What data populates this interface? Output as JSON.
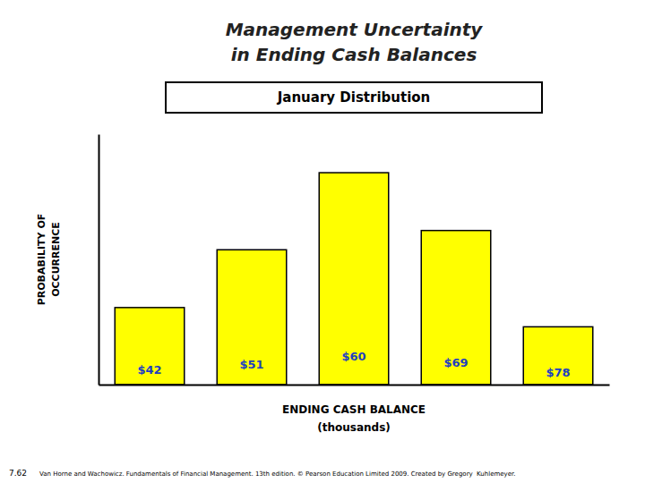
{
  "chart_data": {
    "type": "bar",
    "title": [
      "Management Uncertainty",
      "in Ending Cash Balances"
    ],
    "subtitle": "January Distribution",
    "categories": [
      "$42",
      "$51",
      "$60",
      "$69",
      "$78"
    ],
    "values": [
      0.2,
      0.35,
      0.55,
      0.4,
      0.15
    ],
    "color": "#FFFF00",
    "ylim": [
      0,
      0.65
    ],
    "yticks": [],
    "tick_labels": false,
    "grid": false,
    "xlabel": [
      "ENDING CASH BALANCE",
      "(thousands)"
    ],
    "ylabel": [
      "PROBABILITY OF",
      "OCCURRENCE"
    ],
    "annotations": [
      "7.62",
      "Van Horne and Wachowicz. Fundamentals of Financial Management. 13th edition. © Pearson Education Limited 2009. Created by Gregory  Kuhlemeyer."
    ]
  }
}
